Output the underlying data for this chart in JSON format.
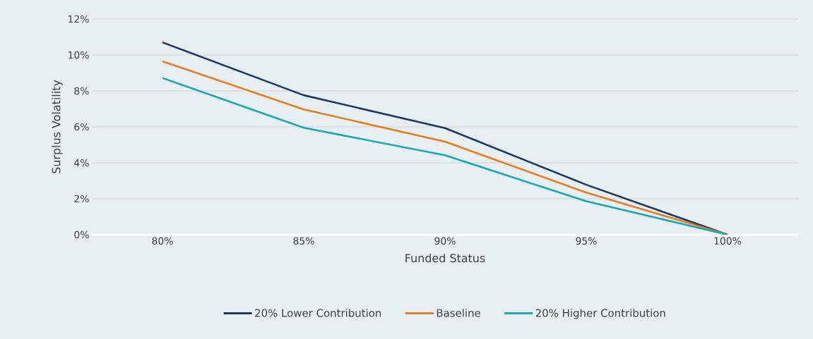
{
  "chart_data": {
    "type": "line",
    "xlabel": "Funded Status",
    "ylabel": "Surplus Volatility",
    "categories": [
      "80%",
      "85%",
      "90%",
      "95%",
      "100%"
    ],
    "series": [
      {
        "name": "20% Lower Contribution",
        "color": "#1f3864",
        "values": [
          10.7,
          7.76,
          5.93,
          2.78,
          0
        ]
      },
      {
        "name": "Baseline",
        "color": "#e87d1e",
        "values": [
          9.65,
          6.97,
          5.18,
          2.34,
          0
        ]
      },
      {
        "name": "20% Higher Contribution",
        "color": "#17a9b6",
        "values": [
          8.72,
          5.95,
          4.42,
          1.86,
          0
        ]
      }
    ],
    "ylim": [
      0,
      12
    ],
    "yticks": [
      {
        "value": 0,
        "label": "0%"
      },
      {
        "value": 2,
        "label": "2%"
      },
      {
        "value": 4,
        "label": "4%"
      },
      {
        "value": 6,
        "label": "6%"
      },
      {
        "value": 8,
        "label": "8%"
      },
      {
        "value": 10,
        "label": "10%"
      },
      {
        "value": 12,
        "label": "12%"
      }
    ],
    "grid": "y",
    "legend": "bottom"
  }
}
